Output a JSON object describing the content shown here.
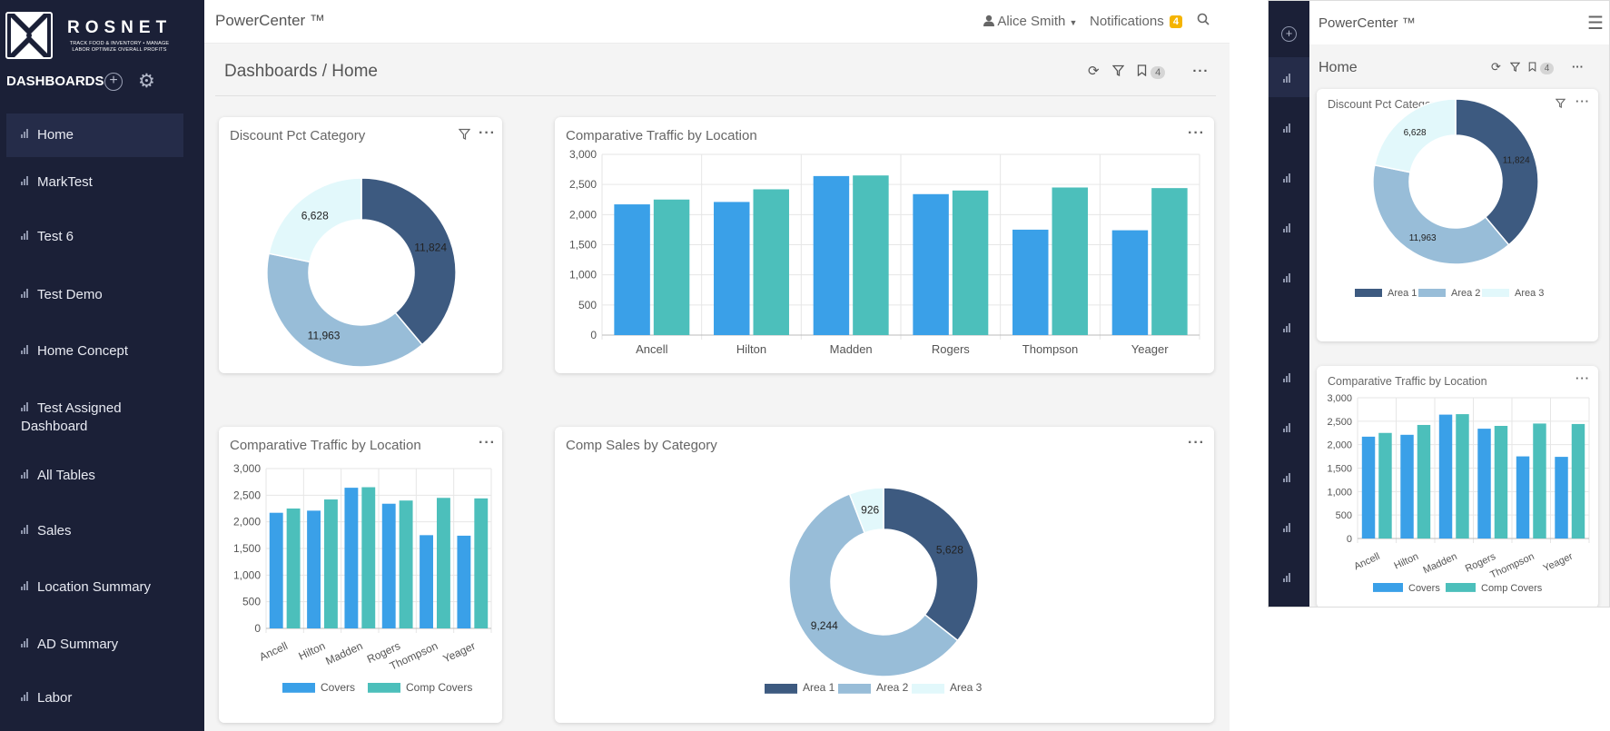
{
  "brand": {
    "name": "ROSNET",
    "tagline": "TRACK FOOD & INVENTORY • MANAGE LABOR OPTIMIZE OVERALL PROFITS"
  },
  "sidebar": {
    "title": "DASHBOARDS",
    "items": [
      {
        "label": "Home",
        "active": true
      },
      {
        "label": "MarkTest"
      },
      {
        "label": "Test 6"
      },
      {
        "label": "Test Demo"
      },
      {
        "label": "Home Concept"
      },
      {
        "label": "Test Assigned Dashboard"
      },
      {
        "label": "All Tables"
      },
      {
        "label": "Sales"
      },
      {
        "label": "Location Summary"
      },
      {
        "label": "AD Summary"
      },
      {
        "label": "Labor"
      }
    ]
  },
  "topbar": {
    "app_title": "PowerCenter ™",
    "user": "Alice Smith",
    "notifications_label": "Notifications",
    "notifications_count": "4"
  },
  "breadcrumb": {
    "path": "Dashboards / Home",
    "bookmark_count": "4"
  },
  "mobile": {
    "app_title": "PowerCenter ™",
    "crumb": "Home",
    "bookmark_count": "4"
  },
  "colors": {
    "sidebar_bg": "#1b2037",
    "area1": "#3d5a80",
    "area2": "#98bdd8",
    "area3": "#e2f8fb",
    "covers": "#3aa0e8",
    "comp_covers": "#4cbfbb",
    "badge": "#f5b400"
  },
  "chart_data": [
    {
      "id": "discount",
      "type": "pie",
      "title": "Discount Pct Category",
      "labels": [
        "Area 1",
        "Area 2",
        "Area 3"
      ],
      "values": [
        11824,
        11963,
        6628
      ],
      "value_labels": [
        "11,824",
        "11,963",
        "6,628"
      ]
    },
    {
      "id": "traffic",
      "type": "bar",
      "title": "Comparative Traffic by Location",
      "categories": [
        "Ancell",
        "Hilton",
        "Madden",
        "Rogers",
        "Thompson",
        "Yeager"
      ],
      "series": [
        {
          "name": "Covers",
          "values": [
            2170,
            2210,
            2640,
            2340,
            1750,
            1740
          ]
        },
        {
          "name": "Comp Covers",
          "values": [
            2250,
            2420,
            2650,
            2400,
            2450,
            2440
          ]
        }
      ],
      "ylim": [
        0,
        3000
      ],
      "yticks": [
        "0",
        "500",
        "1,000",
        "1,500",
        "2,000",
        "2,500",
        "3,000"
      ]
    },
    {
      "id": "compsales",
      "type": "pie",
      "title": "Comp Sales by Category",
      "labels": [
        "Area 1",
        "Area 2",
        "Area 3"
      ],
      "values": [
        5628,
        9244,
        926
      ],
      "value_labels": [
        "5,628",
        "9,244",
        "926"
      ]
    }
  ]
}
